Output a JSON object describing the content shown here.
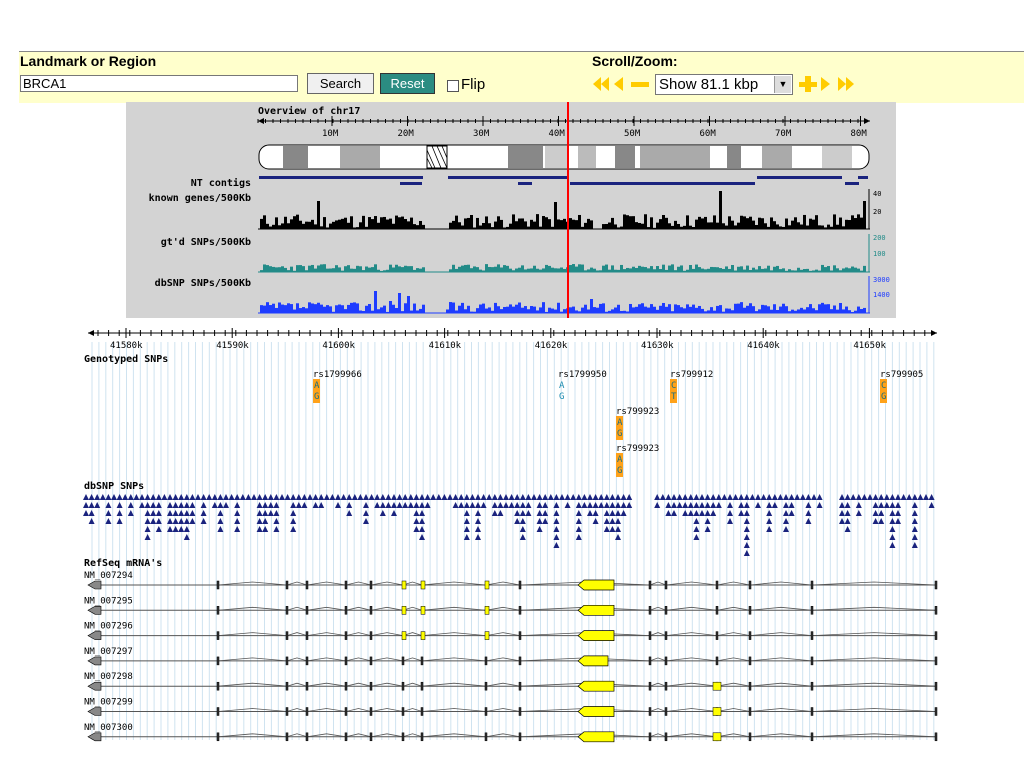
{
  "landmark": {
    "label": "Landmark or Region",
    "value": "BRCA1"
  },
  "buttons": {
    "search": "Search",
    "reset": "Reset"
  },
  "flip": {
    "label": "Flip",
    "checked": false
  },
  "scroll": {
    "label": "Scroll/Zoom:",
    "zoom_value": "Show 81.1 kbp"
  },
  "icons": [
    "rewind-left-icon",
    "left-icon",
    "zoom-out-icon",
    "zoom-in-icon",
    "right-icon",
    "fast-forward-icon"
  ],
  "overview": {
    "title": "Overview of chr17",
    "ticks": [
      "10M",
      "20M",
      "30M",
      "40M",
      "50M",
      "60M",
      "70M",
      "80M"
    ],
    "tracks": [
      "NT contigs",
      "known genes/500Kb",
      "gt'd SNPs/500Kb",
      "dbSNP SNPs/500Kb"
    ],
    "scales": {
      "genes": [
        "40",
        "20"
      ],
      "gtd": [
        "200",
        "100"
      ],
      "dbsnp": [
        "3000",
        "1400"
      ]
    }
  },
  "detail_ruler": [
    "41580k",
    "41590k",
    "41600k",
    "41610k",
    "41620k",
    "41630k",
    "41640k",
    "41650k"
  ],
  "genotyped": {
    "title": "Genotyped SNPs",
    "snps": [
      {
        "id": "rs1799966",
        "alleles": [
          "A",
          "G"
        ],
        "highlight": true
      },
      {
        "id": "rs1799950",
        "alleles": [
          "A",
          "G"
        ],
        "highlight": false
      },
      {
        "id": "rs799912",
        "alleles": [
          "C",
          "T"
        ],
        "highlight": true
      },
      {
        "id": "rs799905",
        "alleles": [
          "C",
          "G"
        ],
        "highlight": true
      },
      {
        "id": "rs799923",
        "alleles": [
          "A",
          "G"
        ],
        "highlight": true
      },
      {
        "id": "rs799923",
        "alleles": [
          "A",
          "G"
        ],
        "highlight": true
      }
    ]
  },
  "dbsnp_title": "dbSNP SNPs",
  "refseq": {
    "title": "RefSeq mRNA's",
    "transcripts": [
      "NM_007294",
      "NM_007295",
      "NM_007296",
      "NM_007297",
      "NM_007298",
      "NM_007299",
      "NM_007300"
    ]
  },
  "colors": {
    "panel": "#ffffcc",
    "accent": "#2b8c82",
    "nav_arrow": "#ffcc00",
    "marker": "#ff0000",
    "dbsnp": "#1a237e",
    "gene": "#ffff00"
  }
}
